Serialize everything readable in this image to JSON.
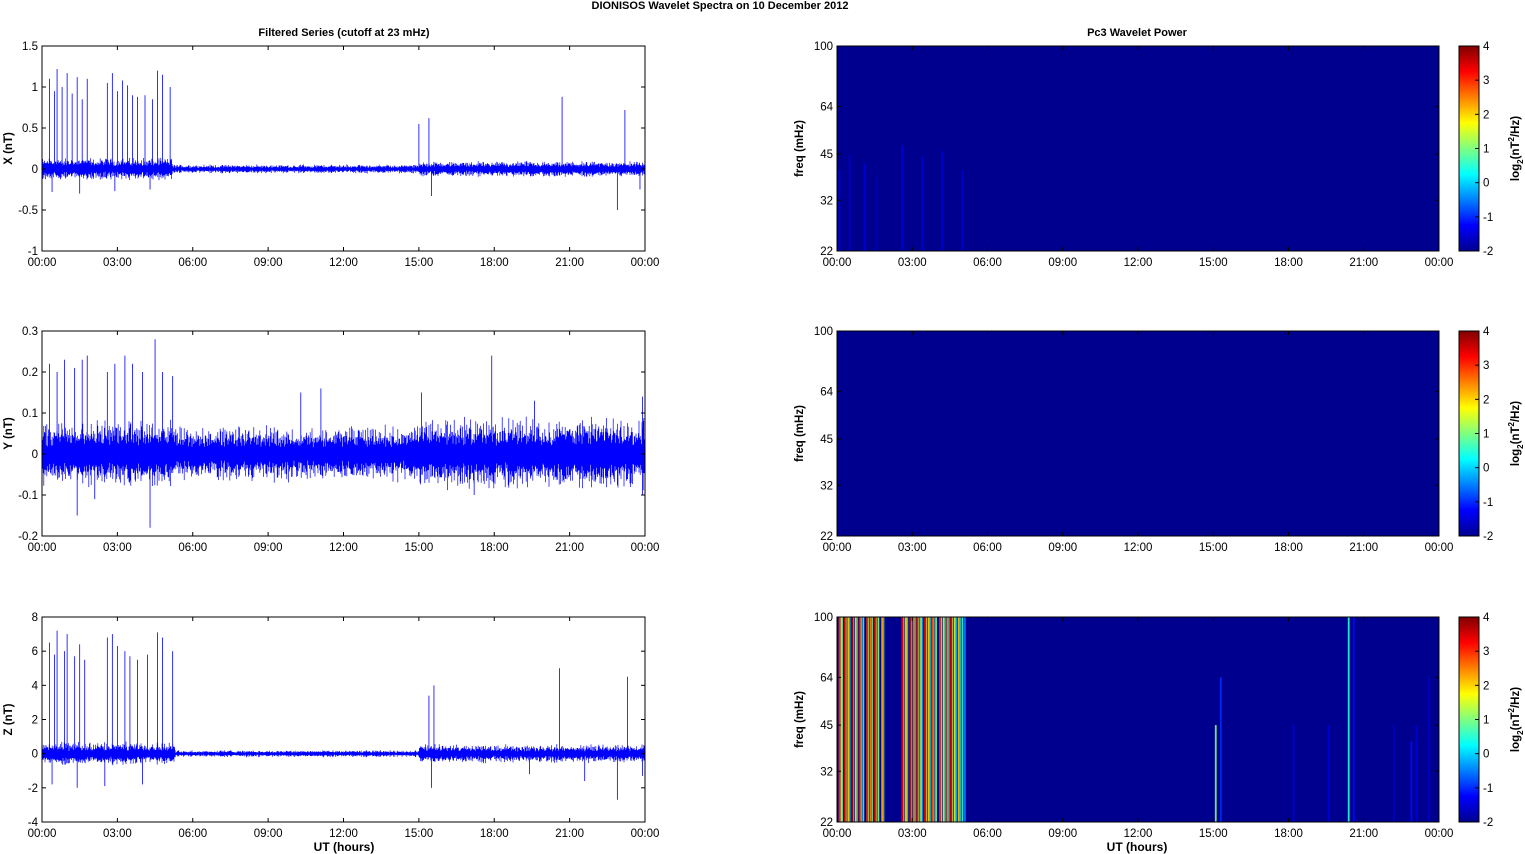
{
  "figure": {
    "title": "DIONISOS Wavelet Spectra on 10 December  2012",
    "left_title": "Filtered Series (cutoff at 23 mHz)",
    "right_title": "Pc3 Wavelet Power",
    "xlabel": "UT (hours)",
    "colorbar_label_base": "log",
    "colorbar_label_sub": "2",
    "colorbar_label_mid": "(nT",
    "colorbar_label_sup": "2",
    "colorbar_label_end": "/Hz)"
  },
  "chart_data": [
    {
      "type": "line",
      "panel": "X",
      "ylabel": "X (nT)",
      "ylim": [
        -1,
        1.5
      ],
      "yticks": [
        "1.5",
        "1",
        "0.5",
        "0",
        "-0.5",
        "-1"
      ],
      "xticks": [
        "00:00",
        "03:00",
        "06:00",
        "09:00",
        "12:00",
        "15:00",
        "18:00",
        "21:00",
        "00:00"
      ],
      "xlim_hours": [
        0,
        24
      ],
      "color": "#0000ff",
      "noise_band": [
        {
          "from": 0,
          "to": 5.2,
          "amp": 0.1
        },
        {
          "from": 5.2,
          "to": 15,
          "amp": 0.04
        },
        {
          "from": 15,
          "to": 24,
          "amp": 0.07
        }
      ],
      "spikes": [
        {
          "x": 0.3,
          "y": 1.1
        },
        {
          "x": 0.5,
          "y": 0.95
        },
        {
          "x": 0.6,
          "y": 1.22
        },
        {
          "x": 0.8,
          "y": 1.0
        },
        {
          "x": 1.0,
          "y": 1.17
        },
        {
          "x": 1.2,
          "y": 0.92
        },
        {
          "x": 1.4,
          "y": 1.12
        },
        {
          "x": 1.6,
          "y": 0.85
        },
        {
          "x": 1.8,
          "y": 1.1
        },
        {
          "x": 2.6,
          "y": 1.05
        },
        {
          "x": 2.8,
          "y": 1.17
        },
        {
          "x": 3.0,
          "y": 0.95
        },
        {
          "x": 3.2,
          "y": 1.08
        },
        {
          "x": 3.4,
          "y": 1.02
        },
        {
          "x": 3.6,
          "y": 0.9
        },
        {
          "x": 3.8,
          "y": 0.88
        },
        {
          "x": 4.1,
          "y": 0.9
        },
        {
          "x": 4.4,
          "y": 0.85
        },
        {
          "x": 4.6,
          "y": 1.2
        },
        {
          "x": 4.8,
          "y": 1.15
        },
        {
          "x": 5.1,
          "y": 1.0
        },
        {
          "x": 15.0,
          "y": 0.55
        },
        {
          "x": 15.4,
          "y": 0.62
        },
        {
          "x": 20.7,
          "y": 0.88
        },
        {
          "x": 23.2,
          "y": 0.72
        },
        {
          "x": 0.4,
          "y": -0.28
        },
        {
          "x": 1.5,
          "y": -0.3
        },
        {
          "x": 2.9,
          "y": -0.27
        },
        {
          "x": 4.3,
          "y": -0.25
        },
        {
          "x": 15.5,
          "y": -0.33
        },
        {
          "x": 22.9,
          "y": -0.5
        },
        {
          "x": 23.8,
          "y": -0.25
        }
      ]
    },
    {
      "type": "line",
      "panel": "Y",
      "ylabel": "Y (nT)",
      "ylim": [
        -0.2,
        0.3
      ],
      "yticks": [
        "0.3",
        "0.2",
        "0.1",
        "0",
        "-0.1",
        "-0.2"
      ],
      "xticks": [
        "00:00",
        "03:00",
        "06:00",
        "09:00",
        "12:00",
        "15:00",
        "18:00",
        "21:00",
        "00:00"
      ],
      "xlim_hours": [
        0,
        24
      ],
      "color": "#0000ff",
      "noise_band": [
        {
          "from": 0,
          "to": 5.2,
          "amp": 0.06
        },
        {
          "from": 5.2,
          "to": 15,
          "amp": 0.05
        },
        {
          "from": 15,
          "to": 24,
          "amp": 0.065
        }
      ],
      "spikes": [
        {
          "x": 0.3,
          "y": 0.22
        },
        {
          "x": 0.6,
          "y": 0.2
        },
        {
          "x": 0.9,
          "y": 0.23
        },
        {
          "x": 1.3,
          "y": 0.21
        },
        {
          "x": 1.6,
          "y": 0.23
        },
        {
          "x": 1.8,
          "y": 0.24
        },
        {
          "x": 2.6,
          "y": 0.2
        },
        {
          "x": 2.9,
          "y": 0.22
        },
        {
          "x": 3.3,
          "y": 0.24
        },
        {
          "x": 3.6,
          "y": 0.22
        },
        {
          "x": 4.0,
          "y": 0.2
        },
        {
          "x": 4.5,
          "y": 0.28
        },
        {
          "x": 4.8,
          "y": 0.2
        },
        {
          "x": 5.2,
          "y": 0.19
        },
        {
          "x": 10.3,
          "y": 0.15
        },
        {
          "x": 11.1,
          "y": 0.16
        },
        {
          "x": 15.1,
          "y": 0.15
        },
        {
          "x": 17.9,
          "y": 0.24
        },
        {
          "x": 19.6,
          "y": 0.13
        },
        {
          "x": 23.9,
          "y": 0.14
        },
        {
          "x": 1.4,
          "y": -0.15
        },
        {
          "x": 2.1,
          "y": -0.11
        },
        {
          "x": 4.3,
          "y": -0.18
        },
        {
          "x": 17.2,
          "y": -0.1
        },
        {
          "x": 23.9,
          "y": -0.1
        }
      ]
    },
    {
      "type": "line",
      "panel": "Z",
      "ylabel": "Z (nT)",
      "ylim": [
        -4,
        8
      ],
      "yticks": [
        "8",
        "6",
        "4",
        "2",
        "0",
        "-2",
        "-4"
      ],
      "xticks": [
        "00:00",
        "03:00",
        "06:00",
        "09:00",
        "12:00",
        "15:00",
        "18:00",
        "21:00",
        "00:00"
      ],
      "xlim_hours": [
        0,
        24
      ],
      "color": "#0000ff",
      "noise_band": [
        {
          "from": 0,
          "to": 5.3,
          "amp": 0.5
        },
        {
          "from": 5.3,
          "to": 15,
          "amp": 0.15
        },
        {
          "from": 15,
          "to": 24,
          "amp": 0.4
        }
      ],
      "spikes": [
        {
          "x": 0.3,
          "y": 6.5
        },
        {
          "x": 0.5,
          "y": 5.8
        },
        {
          "x": 0.6,
          "y": 7.2
        },
        {
          "x": 0.9,
          "y": 6.0
        },
        {
          "x": 1.0,
          "y": 7.0
        },
        {
          "x": 1.3,
          "y": 5.7
        },
        {
          "x": 1.5,
          "y": 6.4
        },
        {
          "x": 1.7,
          "y": 5.5
        },
        {
          "x": 2.6,
          "y": 6.8
        },
        {
          "x": 2.8,
          "y": 7.0
        },
        {
          "x": 3.0,
          "y": 6.3
        },
        {
          "x": 3.3,
          "y": 6.0
        },
        {
          "x": 3.5,
          "y": 5.7
        },
        {
          "x": 3.8,
          "y": 5.5
        },
        {
          "x": 4.2,
          "y": 5.8
        },
        {
          "x": 4.6,
          "y": 7.1
        },
        {
          "x": 4.8,
          "y": 6.8
        },
        {
          "x": 5.2,
          "y": 6.0
        },
        {
          "x": 15.4,
          "y": 3.4
        },
        {
          "x": 15.6,
          "y": 4.0
        },
        {
          "x": 20.6,
          "y": 5.0
        },
        {
          "x": 23.3,
          "y": 4.5
        },
        {
          "x": 0.4,
          "y": -1.8
        },
        {
          "x": 1.4,
          "y": -2.0
        },
        {
          "x": 2.5,
          "y": -1.9
        },
        {
          "x": 4.0,
          "y": -1.8
        },
        {
          "x": 15.5,
          "y": -2.0
        },
        {
          "x": 19.4,
          "y": -1.2
        },
        {
          "x": 21.6,
          "y": -1.6
        },
        {
          "x": 22.9,
          "y": -2.7
        },
        {
          "x": 23.9,
          "y": -1.3
        }
      ]
    },
    {
      "type": "heatmap",
      "panel": "X",
      "ylabel": "freq (mHz)",
      "ylim": [
        22,
        100
      ],
      "yticks": [
        "100",
        "64",
        "45",
        "32",
        "22"
      ],
      "xticks": [
        "00:00",
        "03:00",
        "06:00",
        "09:00",
        "12:00",
        "15:00",
        "18:00",
        "21:00",
        "00:00"
      ],
      "xlim_hours": [
        0,
        24
      ],
      "background_level": -2,
      "colorbar": {
        "min": -2,
        "max": 4,
        "ticks": [
          "4",
          "3",
          "2",
          "1",
          "0",
          "-1",
          "-2"
        ],
        "colormap": "jet"
      },
      "streaks": [
        {
          "x": 0.1,
          "level": -1.5,
          "top": 40
        },
        {
          "x": 0.5,
          "level": -1.6,
          "top": 45
        },
        {
          "x": 1.1,
          "level": -1.5,
          "top": 42
        },
        {
          "x": 1.6,
          "level": -1.7,
          "top": 38
        },
        {
          "x": 2.6,
          "level": -1.5,
          "top": 48
        },
        {
          "x": 3.4,
          "level": -1.6,
          "top": 44
        },
        {
          "x": 4.2,
          "level": -1.6,
          "top": 46
        },
        {
          "x": 5.0,
          "level": -1.6,
          "top": 40
        }
      ]
    },
    {
      "type": "heatmap",
      "panel": "Y",
      "ylabel": "freq (mHz)",
      "ylim": [
        22,
        100
      ],
      "yticks": [
        "100",
        "64",
        "45",
        "32",
        "22"
      ],
      "xticks": [
        "00:00",
        "03:00",
        "06:00",
        "09:00",
        "12:00",
        "15:00",
        "18:00",
        "21:00",
        "00:00"
      ],
      "xlim_hours": [
        0,
        24
      ],
      "background_level": -2,
      "colorbar": {
        "min": -2,
        "max": 4,
        "ticks": [
          "4",
          "3",
          "2",
          "1",
          "0",
          "-1",
          "-2"
        ],
        "colormap": "jet"
      },
      "streaks": []
    },
    {
      "type": "heatmap",
      "panel": "Z",
      "ylabel": "freq (mHz)",
      "ylim": [
        22,
        100
      ],
      "yticks": [
        "100",
        "64",
        "45",
        "32",
        "22"
      ],
      "xticks": [
        "00:00",
        "03:00",
        "06:00",
        "09:00",
        "12:00",
        "15:00",
        "18:00",
        "21:00",
        "00:00"
      ],
      "xlim_hours": [
        0,
        24
      ],
      "background_level": -2,
      "colorbar": {
        "min": -2,
        "max": 4,
        "ticks": [
          "4",
          "3",
          "2",
          "1",
          "0",
          "-1",
          "-2"
        ],
        "colormap": "jet"
      },
      "streaks": [
        {
          "x": 0.1,
          "level": 3.0,
          "top": 100
        },
        {
          "x": 0.2,
          "level": 1.0,
          "top": 100
        },
        {
          "x": 0.3,
          "level": 3.5,
          "top": 100
        },
        {
          "x": 0.45,
          "level": 2.0,
          "top": 100
        },
        {
          "x": 0.6,
          "level": 3.8,
          "top": 100
        },
        {
          "x": 0.75,
          "level": 1.5,
          "top": 100
        },
        {
          "x": 0.9,
          "level": 3.2,
          "top": 100
        },
        {
          "x": 1.05,
          "level": 0.5,
          "top": 100
        },
        {
          "x": 1.2,
          "level": 3.0,
          "top": 100
        },
        {
          "x": 1.35,
          "level": 2.5,
          "top": 100
        },
        {
          "x": 1.5,
          "level": 3.6,
          "top": 100
        },
        {
          "x": 1.65,
          "level": 1.0,
          "top": 100
        },
        {
          "x": 1.8,
          "level": 2.2,
          "top": 100
        },
        {
          "x": 2.6,
          "level": 3.4,
          "top": 100
        },
        {
          "x": 2.75,
          "level": 1.8,
          "top": 100
        },
        {
          "x": 2.9,
          "level": 3.8,
          "top": 100
        },
        {
          "x": 3.05,
          "level": 2.6,
          "top": 100
        },
        {
          "x": 3.2,
          "level": 3.1,
          "top": 100
        },
        {
          "x": 3.35,
          "level": 1.2,
          "top": 100
        },
        {
          "x": 3.5,
          "level": 3.5,
          "top": 100
        },
        {
          "x": 3.65,
          "level": 2.0,
          "top": 100
        },
        {
          "x": 3.8,
          "level": 2.8,
          "top": 100
        },
        {
          "x": 3.95,
          "level": 0.8,
          "top": 100
        },
        {
          "x": 4.1,
          "level": 3.0,
          "top": 100
        },
        {
          "x": 4.25,
          "level": 1.6,
          "top": 100
        },
        {
          "x": 4.4,
          "level": 2.4,
          "top": 100
        },
        {
          "x": 4.55,
          "level": 3.3,
          "top": 100
        },
        {
          "x": 4.7,
          "level": 1.4,
          "top": 100
        },
        {
          "x": 4.85,
          "level": 2.1,
          "top": 100
        },
        {
          "x": 5.0,
          "level": 0.5,
          "top": 100
        },
        {
          "x": 5.1,
          "level": -0.5,
          "top": 100
        },
        {
          "x": 15.1,
          "level": 1.0,
          "top": 45
        },
        {
          "x": 15.3,
          "level": -1.0,
          "top": 64
        },
        {
          "x": 18.2,
          "level": -1.5,
          "top": 45
        },
        {
          "x": 19.6,
          "level": -1.5,
          "top": 45
        },
        {
          "x": 20.4,
          "level": 0.5,
          "top": 100
        },
        {
          "x": 20.6,
          "level": -1.2,
          "top": 100
        },
        {
          "x": 22.2,
          "level": -1.6,
          "top": 45
        },
        {
          "x": 22.9,
          "level": -1.2,
          "top": 40
        },
        {
          "x": 23.1,
          "level": -1.5,
          "top": 45
        },
        {
          "x": 23.6,
          "level": -1.6,
          "top": 64
        }
      ]
    }
  ]
}
